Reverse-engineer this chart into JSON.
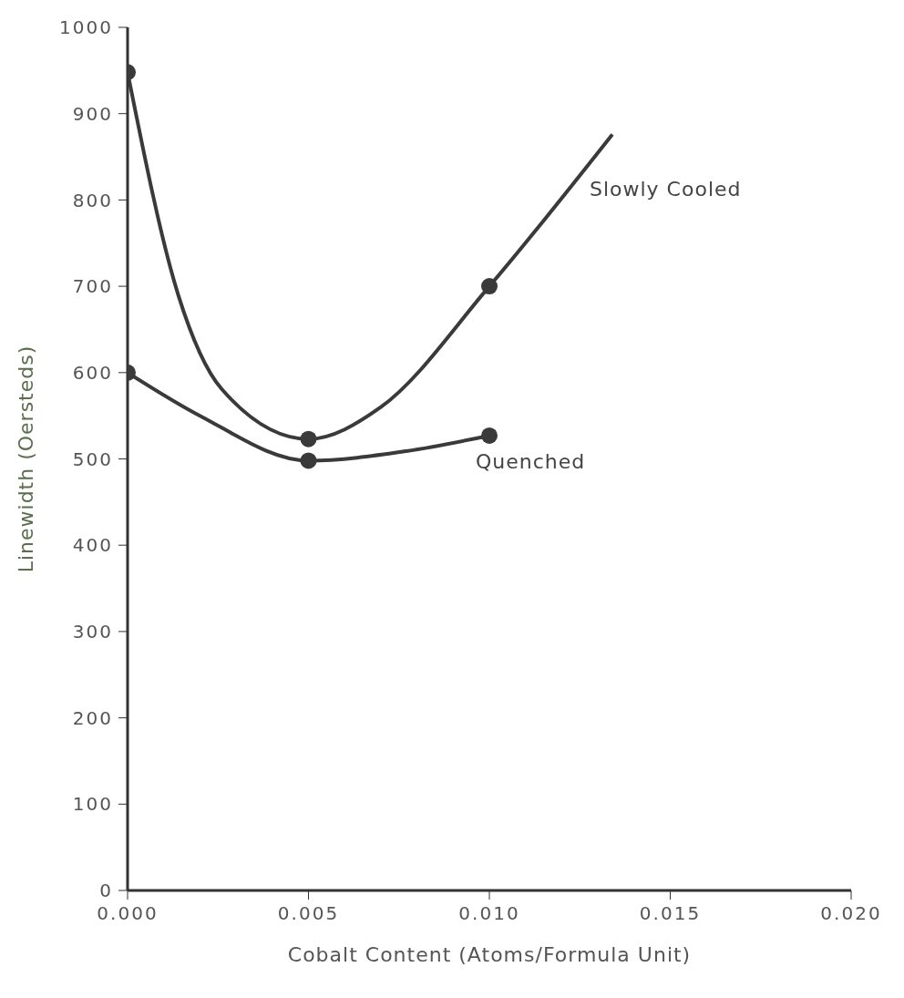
{
  "chart_data": {
    "type": "line",
    "xlabel": "Cobalt Content (Atoms/Formula Unit)",
    "ylabel": "Linewidth (Oersteds)",
    "xlim": [
      0,
      0.02
    ],
    "xticks": [
      {
        "value": 0,
        "label": "0.000"
      },
      {
        "value": 0.005,
        "label": "0.005"
      },
      {
        "value": 0.01,
        "label": "0.010"
      },
      {
        "value": 0.015,
        "label": "0.015"
      },
      {
        "value": 0.02,
        "label": "0.020"
      }
    ],
    "ylim": [
      0,
      1000
    ],
    "yticks": [
      0,
      100,
      200,
      300,
      400,
      500,
      600,
      700,
      800,
      900,
      1000
    ],
    "grid": false,
    "series": [
      {
        "name": "Slowly Cooled",
        "color": "#3a3a3a",
        "marker": "none",
        "x": [
          0,
          0.0014,
          0.0026,
          0.005,
          0.007,
          0.01,
          0.0134
        ],
        "values": [
          948,
          690,
          581,
          523,
          560,
          700,
          876
        ]
      },
      {
        "type": "scatter",
        "color": "#3a3a3a",
        "marker": "circle",
        "x": [
          0,
          0.005,
          0.01
        ],
        "values": [
          948,
          523,
          700
        ]
      },
      {
        "name": "Quenched",
        "color": "#3a3a3a",
        "marker": "none",
        "x": [
          0,
          0.002,
          0.005,
          0.0077,
          0.01
        ],
        "values": [
          600,
          550,
          498,
          509,
          527
        ]
      },
      {
        "type": "scatter",
        "color": "#3a3a3a",
        "marker": "circle",
        "x": [
          0,
          0.005,
          0.01
        ],
        "values": [
          600,
          498,
          527
        ]
      }
    ]
  }
}
